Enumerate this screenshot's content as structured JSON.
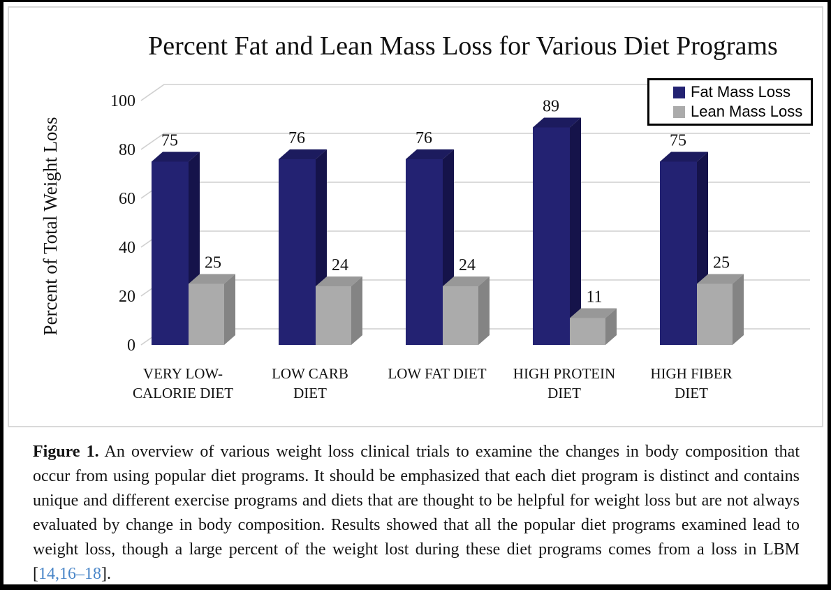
{
  "chart_data": {
    "type": "bar",
    "variant": "3d-clustered-column",
    "title": "Percent Fat and Lean Mass Loss for Various Diet Programs",
    "xlabel": "",
    "ylabel": "Percent of Total Weight Loss",
    "ylim": [
      0,
      100
    ],
    "yticks": [
      0,
      20,
      40,
      60,
      80,
      100
    ],
    "grid": true,
    "legend_position": "top-right",
    "data_labels": true,
    "categories": [
      "VERY LOW-CALORIE DIET",
      "LOW CARB DIET",
      "LOW FAT DIET",
      "HIGH PROTEIN DIET",
      "HIGH FIBER DIET"
    ],
    "category_lines": [
      [
        "VERY LOW-",
        "CALORIE DIET"
      ],
      [
        "LOW CARB",
        "DIET"
      ],
      [
        "LOW FAT DIET"
      ],
      [
        "HIGH PROTEIN",
        "DIET"
      ],
      [
        "HIGH FIBER",
        "DIET"
      ]
    ],
    "series": [
      {
        "name": "Fat Mass Loss",
        "values": [
          75,
          76,
          76,
          89,
          75
        ],
        "color": "#232272",
        "color_top": "#1c1b5e",
        "color_side": "#15134a"
      },
      {
        "name": "Lean Mass Loss",
        "values": [
          25,
          24,
          24,
          11,
          25
        ],
        "color": "#ababab",
        "color_top": "#989898",
        "color_side": "#848484"
      }
    ]
  },
  "colors": {
    "gridline": "#cfcfcf",
    "panel_border": "#d9d9d9",
    "outer_border": "#000000",
    "legend_border": "#000000",
    "text": "#111111",
    "citation": "#4a86c8"
  },
  "caption": {
    "label": "Figure 1.",
    "text_before_citation": "An overview of various weight loss clinical trials to examine the changes in body composition that occur from using popular diet programs.  It should be emphasized that each diet program is distinct and contains unique and different exercise programs and diets that are thought to be helpful for weight loss but are not always evaluated by change in body composition. Results showed that all the popular diet programs examined lead to weight loss, though a large percent of the weight lost during these diet programs comes from a loss in LBM ",
    "citation_open": "[",
    "citation": "14,16–18",
    "citation_close": "]."
  }
}
